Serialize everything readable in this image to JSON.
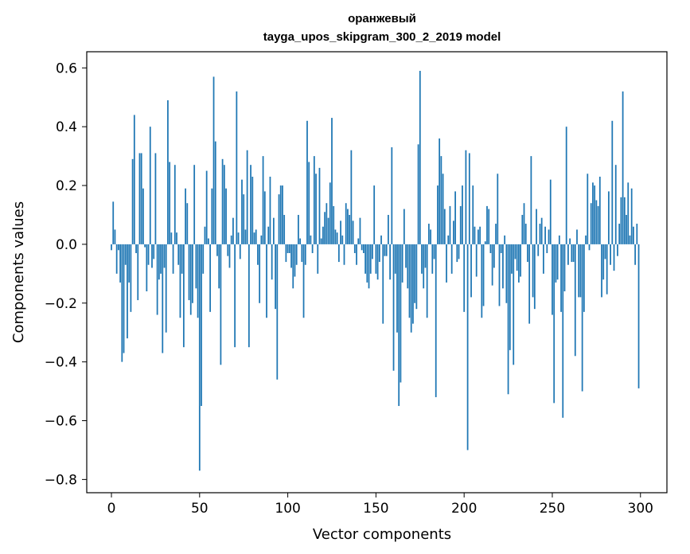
{
  "chart_data": {
    "type": "bar",
    "title": "оранжевый",
    "subtitle": "tayga_upos_skipgram_300_2_2019 model",
    "xlabel": "Vector components",
    "ylabel": "Components values",
    "xlim": [
      -14,
      315
    ],
    "ylim": [
      -0.845,
      0.655
    ],
    "xticks": [
      0,
      50,
      100,
      150,
      200,
      250,
      300
    ],
    "yticks": [
      -0.8,
      -0.6,
      -0.4,
      -0.2,
      0.0,
      0.2,
      0.4,
      0.6
    ],
    "ytick_labels": [
      "−0.8",
      "−0.6",
      "−0.4",
      "−0.2",
      "0.0",
      "0.2",
      "0.4",
      "0.6"
    ],
    "bar_color": "#1f77b4",
    "x": [
      0,
      1,
      2,
      3,
      4,
      5,
      6,
      7,
      8,
      9,
      10,
      11,
      12,
      13,
      14,
      15,
      16,
      17,
      18,
      19,
      20,
      21,
      22,
      23,
      24,
      25,
      26,
      27,
      28,
      29,
      30,
      31,
      32,
      33,
      34,
      35,
      36,
      37,
      38,
      39,
      40,
      41,
      42,
      43,
      44,
      45,
      46,
      47,
      48,
      49,
      50,
      51,
      52,
      53,
      54,
      55,
      56,
      57,
      58,
      59,
      60,
      61,
      62,
      63,
      64,
      65,
      66,
      67,
      68,
      69,
      70,
      71,
      72,
      73,
      74,
      75,
      76,
      77,
      78,
      79,
      80,
      81,
      82,
      83,
      84,
      85,
      86,
      87,
      88,
      89,
      90,
      91,
      92,
      93,
      94,
      95,
      96,
      97,
      98,
      99,
      100,
      101,
      102,
      103,
      104,
      105,
      106,
      107,
      108,
      109,
      110,
      111,
      112,
      113,
      114,
      115,
      116,
      117,
      118,
      119,
      120,
      121,
      122,
      123,
      124,
      125,
      126,
      127,
      128,
      129,
      130,
      131,
      132,
      133,
      134,
      135,
      136,
      137,
      138,
      139,
      140,
      141,
      142,
      143,
      144,
      145,
      146,
      147,
      148,
      149,
      150,
      151,
      152,
      153,
      154,
      155,
      156,
      157,
      158,
      159,
      160,
      161,
      162,
      163,
      164,
      165,
      166,
      167,
      168,
      169,
      170,
      171,
      172,
      173,
      174,
      175,
      176,
      177,
      178,
      179,
      180,
      181,
      182,
      183,
      184,
      185,
      186,
      187,
      188,
      189,
      190,
      191,
      192,
      193,
      194,
      195,
      196,
      197,
      198,
      199,
      200,
      201,
      202,
      203,
      204,
      205,
      206,
      207,
      208,
      209,
      210,
      211,
      212,
      213,
      214,
      215,
      216,
      217,
      218,
      219,
      220,
      221,
      222,
      223,
      224,
      225,
      226,
      227,
      228,
      229,
      230,
      231,
      232,
      233,
      234,
      235,
      236,
      237,
      238,
      239,
      240,
      241,
      242,
      243,
      244,
      245,
      246,
      247,
      248,
      249,
      250,
      251,
      252,
      253,
      254,
      255,
      256,
      257,
      258,
      259,
      260,
      261,
      262,
      263,
      264,
      265,
      266,
      267,
      268,
      269,
      270,
      271,
      272,
      273,
      274,
      275,
      276,
      277,
      278,
      279,
      280,
      281,
      282,
      283,
      284,
      285,
      286,
      287,
      288,
      289,
      290,
      291,
      292,
      293,
      294,
      295,
      296,
      297,
      298,
      299
    ],
    "values": [
      -0.02,
      0.145,
      0.05,
      -0.1,
      -0.02,
      -0.13,
      -0.4,
      -0.37,
      -0.07,
      -0.32,
      -0.13,
      -0.23,
      0.29,
      0.44,
      -0.03,
      -0.19,
      0.31,
      0.31,
      0.19,
      -0.01,
      -0.16,
      -0.07,
      0.4,
      -0.08,
      -0.05,
      0.31,
      -0.24,
      -0.12,
      -0.1,
      -0.37,
      -0.08,
      -0.3,
      0.49,
      0.28,
      0.04,
      -0.1,
      0.27,
      0.04,
      -0.07,
      -0.25,
      -0.1,
      -0.35,
      0.19,
      0.14,
      -0.19,
      -0.24,
      -0.2,
      0.27,
      -0.15,
      -0.25,
      -0.77,
      -0.55,
      -0.1,
      0.06,
      0.25,
      0.02,
      -0.23,
      0.19,
      0.57,
      0.35,
      -0.04,
      -0.15,
      -0.41,
      0.29,
      0.27,
      0.19,
      -0.04,
      -0.08,
      0.03,
      0.09,
      -0.35,
      0.52,
      0.04,
      -0.05,
      0.22,
      0.17,
      0.05,
      0.32,
      -0.35,
      0.27,
      0.23,
      0.04,
      0.05,
      -0.07,
      -0.2,
      0.03,
      0.3,
      0.18,
      -0.25,
      0.06,
      0.23,
      -0.12,
      0.09,
      -0.22,
      -0.46,
      0.17,
      0.2,
      0.2,
      0.1,
      -0.06,
      -0.03,
      -0.03,
      -0.08,
      -0.15,
      -0.11,
      -0.07,
      0.1,
      0.02,
      -0.06,
      -0.25,
      -0.07,
      0.42,
      0.28,
      0.03,
      -0.03,
      0.3,
      0.24,
      -0.1,
      0.26,
      0.02,
      0.06,
      0.11,
      0.14,
      0.09,
      0.21,
      0.43,
      0.13,
      0.05,
      0.04,
      -0.06,
      0.08,
      0.03,
      -0.07,
      0.14,
      0.12,
      0.1,
      0.32,
      0.08,
      -0.03,
      -0.07,
      0.02,
      0.09,
      -0.02,
      -0.03,
      -0.1,
      -0.13,
      -0.15,
      -0.1,
      -0.05,
      0.2,
      -0.1,
      -0.12,
      -0.06,
      0.03,
      -0.27,
      -0.04,
      -0.04,
      0.1,
      -0.12,
      0.33,
      -0.43,
      -0.1,
      -0.3,
      -0.55,
      -0.47,
      -0.13,
      0.12,
      -0.08,
      -0.15,
      -0.25,
      -0.3,
      -0.27,
      -0.2,
      -0.22,
      0.34,
      0.59,
      -0.1,
      -0.15,
      -0.08,
      -0.25,
      0.07,
      0.05,
      -0.1,
      -0.05,
      -0.52,
      0.2,
      0.36,
      0.3,
      0.24,
      0.12,
      -0.13,
      0.03,
      0.13,
      -0.1,
      0.08,
      0.18,
      -0.06,
      -0.05,
      0.13,
      0.2,
      -0.23,
      0.32,
      -0.7,
      0.31,
      -0.18,
      0.2,
      0.06,
      -0.11,
      0.05,
      0.06,
      -0.25,
      -0.21,
      0.01,
      0.13,
      0.12,
      -0.03,
      -0.14,
      -0.08,
      0.07,
      0.24,
      -0.21,
      -0.03,
      -0.15,
      0.03,
      -0.2,
      -0.51,
      -0.36,
      -0.1,
      -0.41,
      -0.05,
      -0.09,
      -0.13,
      -0.11,
      0.1,
      0.14,
      0.07,
      -0.06,
      -0.27,
      0.3,
      -0.18,
      -0.22,
      0.12,
      -0.04,
      0.07,
      0.09,
      -0.1,
      0.06,
      -0.03,
      0.05,
      0.22,
      -0.24,
      -0.54,
      -0.13,
      -0.12,
      0.03,
      -0.23,
      -0.59,
      -0.16,
      0.4,
      -0.07,
      0.02,
      -0.06,
      -0.06,
      -0.38,
      0.05,
      -0.18,
      -0.18,
      -0.5,
      -0.23,
      0.03,
      0.24,
      -0.02,
      0.14,
      0.21,
      0.2,
      0.15,
      0.13,
      0.23,
      -0.18,
      -0.12,
      -0.05,
      -0.17,
      0.18,
      -0.07,
      0.42,
      -0.09,
      0.27,
      -0.04,
      0.07,
      0.16,
      0.52,
      0.16,
      0.1,
      0.21,
      0.03,
      0.19,
      0.06,
      -0.07,
      0.07,
      -0.49
    ]
  }
}
